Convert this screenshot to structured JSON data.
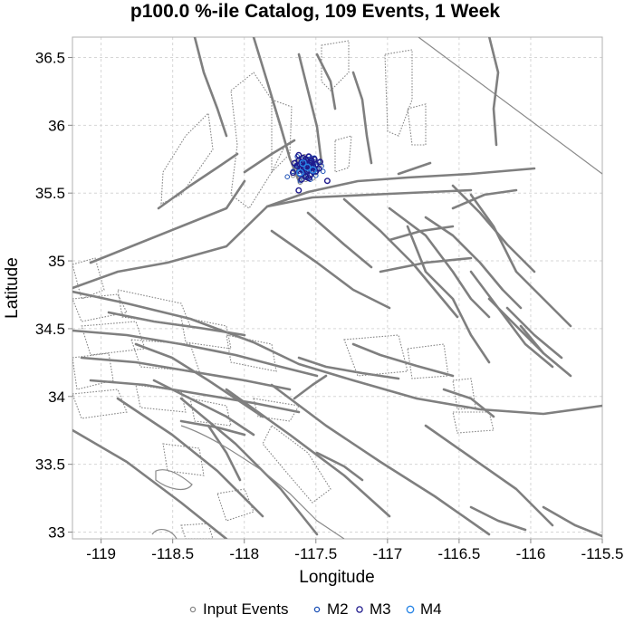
{
  "chart_data": {
    "type": "scatter",
    "title": "p100.0 %-ile Catalog, 109 Events, 1 Week",
    "xlabel": "Longitude",
    "ylabel": "Latitude",
    "xlim": [
      -119.2,
      -115.5
    ],
    "ylim": [
      32.95,
      36.65
    ],
    "xticks": [
      -119,
      -118.5,
      -118,
      -117.5,
      -117,
      -116.5,
      -116,
      -115.5
    ],
    "xtick_labels": [
      "-119",
      "-118.5",
      "-118",
      "-117.5",
      "-117",
      "-116.5",
      "-116",
      "-115.5"
    ],
    "yticks": [
      33,
      33.5,
      34,
      34.5,
      35,
      35.5,
      36,
      36.5
    ],
    "ytick_labels": [
      "33",
      "33.5",
      "34",
      "34.5",
      "35",
      "35.5",
      "36",
      "36.5"
    ],
    "grid": true,
    "legend_position": "bottom",
    "series": [
      {
        "name": "Input Events",
        "color": "#888888",
        "marker": "open-circle-small",
        "x": [
          -117.55,
          -117.58,
          -117.61,
          -117.63,
          -117.66,
          -117.52,
          -117.49,
          -117.57,
          -117.6,
          -117.54,
          -117.62,
          -117.51,
          -117.56,
          -117.59,
          -117.64,
          -117.53,
          -117.5,
          -117.58,
          -117.61,
          -117.55,
          -117.47,
          -117.65,
          -117.52,
          -117.57
        ],
        "y": [
          35.7,
          35.66,
          35.74,
          35.69,
          35.63,
          35.72,
          35.68,
          35.6,
          35.76,
          35.64,
          35.71,
          35.75,
          35.67,
          35.62,
          35.73,
          35.7,
          35.65,
          35.77,
          35.58,
          35.73,
          35.71,
          35.67,
          35.61,
          35.69
        ]
      },
      {
        "name": "M2",
        "color": "#1a4fb5",
        "marker": "open-circle-small",
        "x": [
          -117.56,
          -117.59,
          -117.62,
          -117.53,
          -117.5,
          -117.57,
          -117.6,
          -117.54,
          -117.63,
          -117.48,
          -117.58,
          -117.55,
          -117.61,
          -117.52,
          -117.66,
          -117.51,
          -117.57,
          -117.59,
          -117.54,
          -117.62,
          -117.49,
          -117.56,
          -117.6,
          -117.53,
          -117.64,
          -117.58,
          -117.45,
          -117.7,
          -117.55,
          -117.61,
          -117.52,
          -117.57,
          -117.5,
          -117.59,
          -117.63,
          -117.54,
          -117.56,
          -117.6,
          -117.58,
          -117.53,
          -117.62,
          -117.51,
          -117.55,
          -117.57,
          -117.46
        ],
        "y": [
          35.72,
          35.69,
          35.66,
          35.74,
          35.7,
          35.63,
          35.75,
          35.67,
          35.71,
          35.73,
          35.62,
          35.77,
          35.68,
          35.65,
          35.66,
          35.76,
          35.7,
          35.73,
          35.6,
          35.74,
          35.67,
          35.64,
          35.71,
          35.69,
          35.7,
          35.66,
          35.66,
          35.62,
          35.75,
          35.59,
          35.72,
          35.68,
          35.63,
          35.65,
          35.77,
          35.71,
          35.61,
          35.68,
          35.74,
          35.76,
          35.7,
          35.69,
          35.66,
          35.73,
          35.7
        ]
      },
      {
        "name": "M3",
        "color": "#1f1a8c",
        "marker": "open-circle",
        "x": [
          -117.57,
          -117.54,
          -117.6,
          -117.62,
          -117.5,
          -117.56,
          -117.59,
          -117.53,
          -117.61,
          -117.58,
          -117.48,
          -117.55,
          -117.63,
          -117.52,
          -117.57,
          -117.65,
          -117.6,
          -117.47,
          -117.54,
          -117.58,
          -117.51,
          -117.62,
          -117.56,
          -117.59,
          -117.53,
          -117.66,
          -117.55,
          -117.61,
          -117.5,
          -117.57,
          -117.42,
          -117.62,
          -117.58,
          -117.55,
          -117.6,
          -117.52
        ],
        "y": [
          35.7,
          35.72,
          35.68,
          35.74,
          35.71,
          35.66,
          35.76,
          35.69,
          35.64,
          35.73,
          35.68,
          35.77,
          35.7,
          35.66,
          35.62,
          35.72,
          35.6,
          35.73,
          35.63,
          35.68,
          35.75,
          35.78,
          35.71,
          35.67,
          35.74,
          35.65,
          35.61,
          35.71,
          35.66,
          35.75,
          35.59,
          35.52,
          35.69,
          35.67,
          35.73,
          35.7
        ]
      },
      {
        "name": "M4",
        "color": "#2a86e6",
        "marker": "open-circle-large",
        "x": [
          -117.56,
          -117.59,
          -117.52,
          -117.61
        ],
        "y": [
          35.69,
          35.72,
          35.67,
          35.65
        ]
      }
    ]
  }
}
